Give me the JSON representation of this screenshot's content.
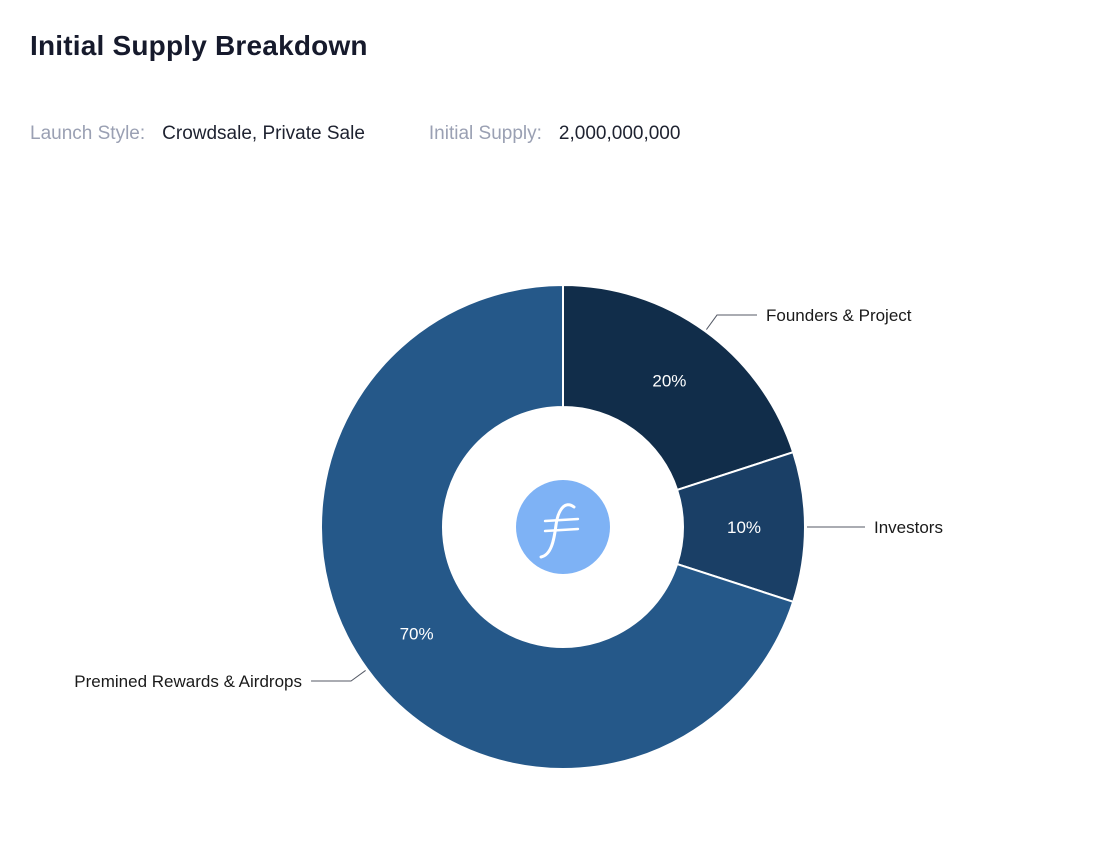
{
  "header": {
    "title": "Initial Supply Breakdown"
  },
  "meta": {
    "launch_style_label": "Launch Style:",
    "launch_style_value": "Crowdsale, Private Sale",
    "initial_supply_label": "Initial Supply:",
    "initial_supply_value": "2,000,000,000"
  },
  "center_logo": {
    "icon": "filecoin-logo-icon",
    "color": "#7eb2f5"
  },
  "chart_data": {
    "type": "pie",
    "donut": true,
    "title": "Initial Supply Breakdown",
    "categories": [
      "Founders & Project",
      "Investors",
      "Premined Rewards & Airdrops"
    ],
    "values": [
      20,
      10,
      70
    ],
    "value_labels": [
      "20%",
      "10%",
      "70%"
    ],
    "colors": [
      "#112d4a",
      "#1a3f66",
      "#255889"
    ],
    "start_angle_deg": 0,
    "direction": "clockwise"
  }
}
